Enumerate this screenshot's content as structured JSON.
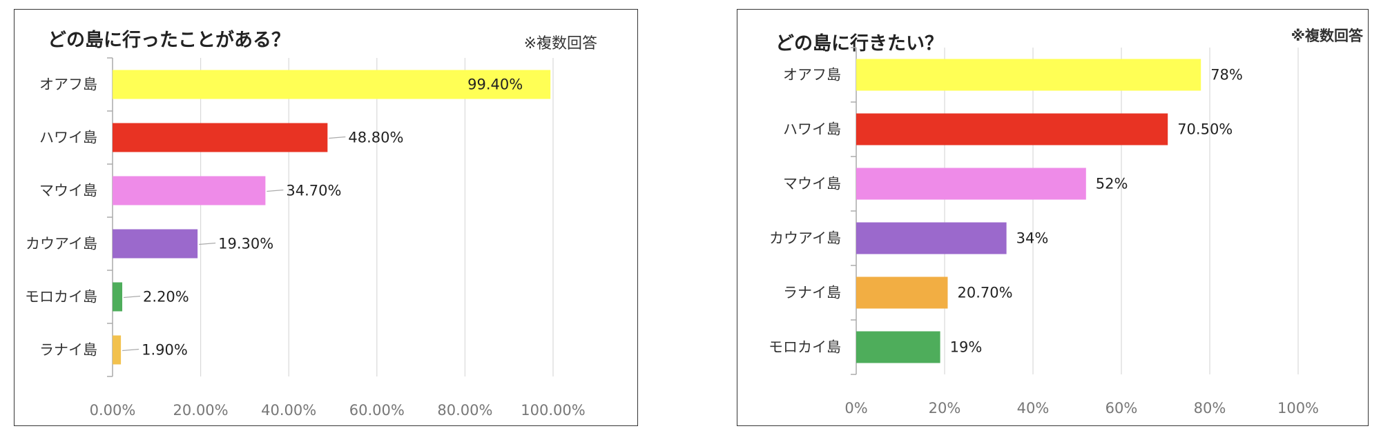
{
  "chart_data": [
    {
      "type": "bar",
      "orientation": "horizontal",
      "title": "どの島に行ったことがある？",
      "note": "※複数回答",
      "categories": [
        "オアフ島",
        "ハワイ島",
        "マウイ島",
        "カウアイ島",
        "モロカイ島",
        "ラナイ島"
      ],
      "values": [
        99.4,
        48.8,
        34.7,
        19.3,
        2.2,
        1.9
      ],
      "value_labels": [
        "99.40%",
        "48.80%",
        "34.70%",
        "19.30%",
        "2.20%",
        "1.90%"
      ],
      "colors": [
        "#FFFF55",
        "#E83323",
        "#EE8BE8",
        "#9B69CC",
        "#4EAD5B",
        "#F2C14E"
      ],
      "xlim": [
        0,
        100
      ],
      "x_ticks": [
        "0.00%",
        "20.00%",
        "40.00%",
        "60.00%",
        "80.00%",
        "100.00%"
      ],
      "grid": true,
      "xlabel": "",
      "ylabel": ""
    },
    {
      "type": "bar",
      "orientation": "horizontal",
      "title": "どの島に行きたい？",
      "note": "※複数回答",
      "categories": [
        "オアフ島",
        "ハワイ島",
        "マウイ島",
        "カウアイ島",
        "ラナイ島",
        "モロカイ島"
      ],
      "values": [
        78,
        70.5,
        52,
        34,
        20.7,
        19
      ],
      "value_labels": [
        "78%",
        "70.50%",
        "52%",
        "34%",
        "20.70%",
        "19%"
      ],
      "colors": [
        "#FFFF55",
        "#E83323",
        "#EE8BE8",
        "#9B69CC",
        "#F2AE43",
        "#4EAD5B"
      ],
      "xlim": [
        0,
        100
      ],
      "x_ticks": [
        "0%",
        "20%",
        "40%",
        "60%",
        "80%",
        "100%"
      ],
      "grid": true,
      "xlabel": "",
      "ylabel": ""
    }
  ]
}
